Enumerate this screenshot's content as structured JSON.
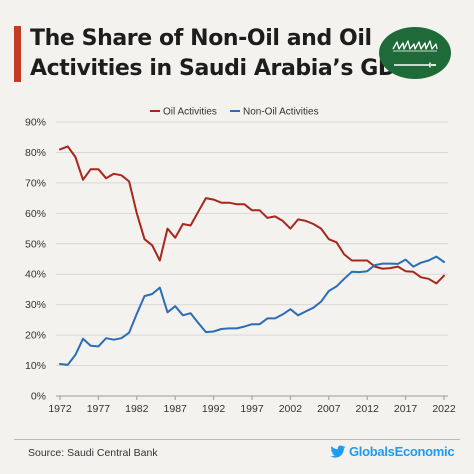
{
  "title": {
    "line1": "The Share of Non-Oil and Oil",
    "line2": "Activities in Saudi Arabia’s GDP"
  },
  "footer": {
    "source": "Source: Saudi Central Bank",
    "brand": "GlobalsEconomic"
  },
  "colors": {
    "oil": "#a8261c",
    "non_oil": "#2c6db5",
    "accent": "#c23b22",
    "flag_green": "#1e6b39",
    "brand": "#1d9bf0"
  },
  "chart_data": {
    "type": "line",
    "x": [
      1972,
      1973,
      1974,
      1975,
      1976,
      1977,
      1978,
      1979,
      1980,
      1981,
      1982,
      1983,
      1984,
      1985,
      1986,
      1987,
      1988,
      1989,
      1990,
      1991,
      1992,
      1993,
      1994,
      1995,
      1996,
      1997,
      1998,
      1999,
      2000,
      2001,
      2002,
      2003,
      2004,
      2005,
      2006,
      2007,
      2008,
      2009,
      2010,
      2011,
      2012,
      2013,
      2014,
      2015,
      2016,
      2017,
      2018,
      2019,
      2020,
      2021,
      2022
    ],
    "x_ticks": [
      "1972",
      "1977",
      "1982",
      "1987",
      "1992",
      "1997",
      "2002",
      "2007",
      "2012",
      "2017",
      "2022"
    ],
    "x_tick_values": [
      1972,
      1977,
      1982,
      1987,
      1992,
      1997,
      2002,
      2007,
      2012,
      2017,
      2022
    ],
    "y_ticks": [
      "0%",
      "10%",
      "20%",
      "30%",
      "40%",
      "50%",
      "60%",
      "70%",
      "80%",
      "90%"
    ],
    "ylim": [
      0,
      90
    ],
    "xlim": [
      1972,
      2022
    ],
    "legend_position": "top-center",
    "grid": "horizontal",
    "series": [
      {
        "name": "Oil Activities",
        "color": "#a8261c",
        "values": [
          81,
          82,
          78.5,
          71,
          74.5,
          74.5,
          71.5,
          73,
          72.5,
          70.5,
          60,
          51.5,
          49.5,
          44.5,
          55,
          52,
          56.5,
          56,
          60.5,
          65,
          64.5,
          63.5,
          63.5,
          63,
          63,
          61,
          61,
          58.5,
          59,
          57.5,
          55,
          58,
          57.5,
          56.5,
          55,
          51.5,
          50.5,
          46.5,
          44.5,
          44.5,
          44.5,
          42.5,
          41.8,
          42,
          42.5,
          41,
          40.8,
          39,
          38.5,
          37,
          39.5
        ]
      },
      {
        "name": "Non-Oil Activities",
        "color": "#2c6db5",
        "values": [
          10.5,
          10.2,
          13.5,
          18.8,
          16.5,
          16.3,
          19,
          18.5,
          19,
          20.8,
          27,
          32.8,
          33.5,
          35.6,
          27.5,
          29.5,
          26.5,
          27.2,
          24,
          21,
          21.2,
          22,
          22.2,
          22.2,
          22.8,
          23.6,
          23.6,
          25.5,
          25.5,
          26.8,
          28.5,
          26.5,
          27.8,
          29,
          31,
          34.5,
          36,
          38.5,
          40.8,
          40.7,
          41,
          43,
          43.5,
          43.5,
          43.4,
          44.8,
          42.5,
          43.8,
          44.5,
          45.8,
          44
        ]
      }
    ]
  }
}
